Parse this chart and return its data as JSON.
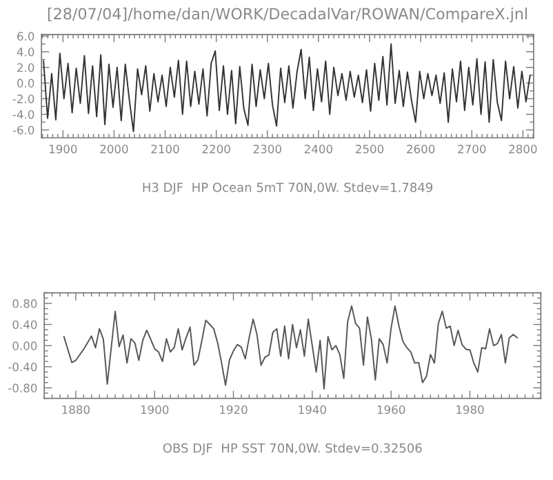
{
  "chart_data": [
    {
      "type": "line",
      "title": "[28/07/04]/home/dan/WORK/DecadalVar/ROWAN/CompareX.jnl",
      "xlabel": "H3 DJF  HP Ocean 5mT 70N,0W. Stdev=1.7849",
      "x": [
        1862,
        1870,
        1878,
        1886,
        1894,
        1902,
        1910,
        1918,
        1926,
        1934,
        1942,
        1950,
        1958,
        1966,
        1974,
        1982,
        1990,
        1998,
        2006,
        2014,
        2022,
        2030,
        2038,
        2046,
        2054,
        2062,
        2070,
        2078,
        2086,
        2094,
        2102,
        2110,
        2118,
        2126,
        2134,
        2142,
        2150,
        2158,
        2166,
        2174,
        2182,
        2190,
        2198,
        2206,
        2214,
        2222,
        2230,
        2238,
        2246,
        2254,
        2262,
        2270,
        2278,
        2286,
        2294,
        2302,
        2310,
        2318,
        2326,
        2334,
        2342,
        2350,
        2358,
        2366,
        2374,
        2382,
        2390,
        2398,
        2406,
        2414,
        2422,
        2430,
        2438,
        2446,
        2454,
        2462,
        2470,
        2478,
        2486,
        2494,
        2502,
        2510,
        2518,
        2526,
        2534,
        2542,
        2550,
        2558,
        2566,
        2574,
        2582,
        2590,
        2598,
        2606,
        2614,
        2622,
        2630,
        2638,
        2646,
        2654,
        2662,
        2670,
        2678,
        2686,
        2694,
        2702,
        2710,
        2718,
        2726,
        2734,
        2742,
        2750,
        2758,
        2766,
        2774,
        2782,
        2790,
        2798,
        2806,
        2814
      ],
      "series": [
        {
          "color": "#333333",
          "values": [
            2.8,
            -4.5,
            1.2,
            -4.7,
            3.8,
            -2.0,
            2.5,
            -3.8,
            1.9,
            -2.6,
            3.5,
            -3.9,
            2.2,
            -4.3,
            3.6,
            -5.3,
            2.4,
            -3.1,
            2.0,
            -4.8,
            2.4,
            -2.2,
            -6.2,
            1.8,
            -1.5,
            2.2,
            -3.6,
            1.2,
            -2.4,
            1.0,
            -3.0,
            2.0,
            -1.8,
            2.9,
            -4.0,
            2.8,
            -3.0,
            1.5,
            -2.7,
            1.8,
            -4.2,
            2.5,
            4.1,
            -3.5,
            2.2,
            -4.0,
            1.6,
            -5.2,
            2.1,
            -3.3,
            -5.4,
            2.4,
            -3.0,
            1.7,
            -2.0,
            2.5,
            -2.8,
            -5.5,
            1.9,
            -2.5,
            2.2,
            -3.2,
            1.4,
            4.3,
            -2.0,
            3.3,
            -3.5,
            1.8,
            -2.4,
            2.8,
            -4.0,
            2.0,
            -1.6,
            1.2,
            -2.2,
            1.5,
            -1.8,
            1.0,
            -2.5,
            1.7,
            -3.6,
            2.5,
            -2.2,
            3.4,
            -2.8,
            5.0,
            -2.6,
            1.6,
            -3.0,
            1.4,
            -2.2,
            -5.0,
            1.5,
            -2.0,
            1.2,
            -1.6,
            1.0,
            -2.6,
            1.3,
            -5.0,
            1.8,
            -2.4,
            2.8,
            -3.5,
            2.0,
            -2.8,
            3.1,
            -4.0,
            2.7,
            -5.0,
            3.0,
            -2.5,
            -4.8,
            2.8,
            -2.0,
            2.1,
            -3.2,
            1.5,
            -2.4,
            1.0
          ]
        }
      ],
      "xlim": [
        1858,
        2821
      ],
      "xticks": [
        1900,
        2000,
        2100,
        2200,
        2300,
        2400,
        2500,
        2600,
        2700,
        2800
      ],
      "ylim": [
        -7,
        6.2
      ],
      "yticks": [
        {
          "value": -6,
          "label": "-6.0"
        },
        {
          "value": -4,
          "label": "-4.0"
        },
        {
          "value": -2,
          "label": "-2.0"
        },
        {
          "value": 0,
          "label": "0.0"
        },
        {
          "value": 2,
          "label": "2.0"
        },
        {
          "value": 4,
          "label": "4.0"
        },
        {
          "value": 6,
          "label": "6.0"
        }
      ]
    },
    {
      "type": "line",
      "xlabel": "OBS DJF  HP SST 70N,0W. Stdev=0.32506",
      "x": [
        1877,
        1879,
        1880,
        1882,
        1884,
        1885,
        1886,
        1887,
        1888,
        1890,
        1891,
        1892,
        1893,
        1894,
        1895,
        1896,
        1897,
        1898,
        1899,
        1900,
        1901,
        1902,
        1903,
        1904,
        1905,
        1906,
        1907,
        1908,
        1909,
        1910,
        1911,
        1912,
        1913,
        1914,
        1915,
        1916,
        1917,
        1918,
        1919,
        1920,
        1921,
        1922,
        1923,
        1924,
        1925,
        1926,
        1927,
        1928,
        1929,
        1930,
        1931,
        1932,
        1933,
        1934,
        1935,
        1936,
        1937,
        1938,
        1939,
        1940,
        1941,
        1942,
        1943,
        1944,
        1945,
        1946,
        1947,
        1948,
        1949,
        1950,
        1951,
        1952,
        1953,
        1954,
        1955,
        1956,
        1957,
        1958,
        1959,
        1960,
        1961,
        1962,
        1963,
        1964,
        1965,
        1966,
        1967,
        1968,
        1969,
        1970,
        1971,
        1972,
        1973,
        1974,
        1975,
        1976,
        1977,
        1978,
        1979,
        1980,
        1981,
        1982,
        1983,
        1984,
        1985,
        1986,
        1987,
        1988,
        1989,
        1990,
        1991,
        1992
      ],
      "series": [
        {
          "color": "#555555",
          "values": [
            0.17,
            -0.32,
            -0.28,
            -0.07,
            0.18,
            -0.04,
            0.32,
            0.12,
            -0.73,
            0.65,
            -0.02,
            0.2,
            -0.33,
            0.13,
            0.05,
            -0.28,
            0.1,
            0.29,
            0.12,
            -0.06,
            -0.12,
            -0.3,
            0.13,
            -0.12,
            -0.03,
            0.32,
            -0.08,
            0.15,
            0.35,
            -0.37,
            -0.27,
            0.1,
            0.48,
            0.4,
            0.32,
            0.05,
            -0.33,
            -0.75,
            -0.27,
            -0.1,
            0.02,
            -0.03,
            -0.25,
            0.15,
            0.5,
            0.2,
            -0.37,
            -0.22,
            -0.18,
            0.25,
            0.32,
            -0.2,
            0.37,
            -0.25,
            0.4,
            -0.04,
            0.3,
            -0.2,
            0.5,
            0.0,
            -0.5,
            0.1,
            -0.82,
            0.17,
            -0.08,
            0.0,
            -0.17,
            -0.62,
            0.46,
            0.75,
            0.42,
            0.33,
            -0.37,
            0.54,
            0.13,
            -0.65,
            0.13,
            0.02,
            -0.33,
            0.33,
            0.75,
            0.37,
            0.08,
            -0.04,
            -0.12,
            -0.33,
            -0.32,
            -0.7,
            -0.58,
            -0.17,
            -0.33,
            0.42,
            0.65,
            0.33,
            0.37,
            0.0,
            0.29,
            0.02,
            -0.07,
            -0.08,
            -0.33,
            -0.5,
            -0.04,
            -0.06,
            0.32,
            0.0,
            0.04,
            0.21,
            -0.33,
            0.15,
            0.21,
            0.15
          ]
        }
      ],
      "xlim": [
        1872,
        1998
      ],
      "xticks": [
        1880,
        1900,
        1920,
        1940,
        1960,
        1980
      ],
      "ylim": [
        -1,
        1
      ],
      "yticks": [
        {
          "value": -0.8,
          "label": "-0.80"
        },
        {
          "value": -0.4,
          "label": "-0.40"
        },
        {
          "value": 0,
          "label": "0.00"
        },
        {
          "value": 0.4,
          "label": "0.40"
        },
        {
          "value": 0.8,
          "label": "0.80"
        }
      ]
    }
  ]
}
